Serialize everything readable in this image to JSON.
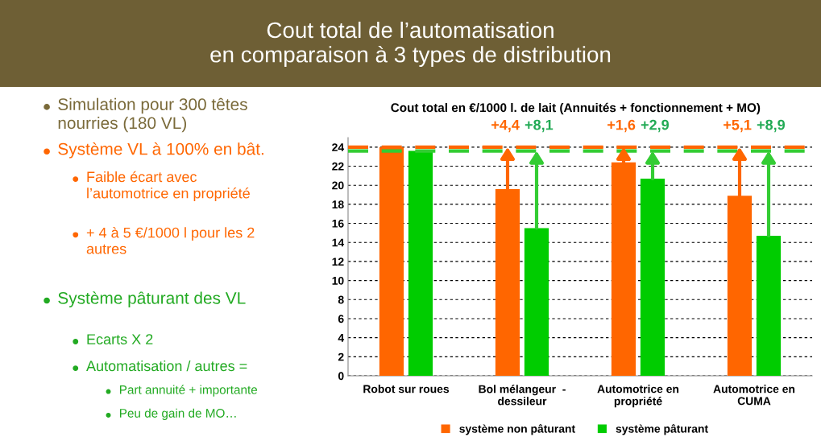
{
  "chart_data": {
    "type": "bar",
    "title": "Cout total de l’automatisation\nen comparaison à 3 types de distribution",
    "subtitle": "Cout total en €/1000 l. de lait (Annuités + fonctionnement + MO)",
    "categories": [
      "Robot sur roues",
      "Bol mélangeur  -\ndessileur",
      "Automotrice en\npropriété",
      "Automotrice en\nCUMA"
    ],
    "series": [
      {
        "name": "système non pâturant",
        "color": "#ff6600",
        "values": [
          24.0,
          19.6,
          22.4,
          18.9
        ]
      },
      {
        "name": "système pâturant",
        "color": "#00cc00",
        "values": [
          23.6,
          15.5,
          20.7,
          14.7
        ]
      }
    ],
    "ylim": [
      0,
      25
    ],
    "yticks": [
      0,
      2,
      4,
      6,
      8,
      10,
      12,
      14,
      16,
      18,
      20,
      22,
      24
    ],
    "grid": "y",
    "legend": "bottom",
    "ref_lines": [
      {
        "axis": "y",
        "value": 24.0,
        "color": "#ff6600",
        "line_style": "dashed"
      },
      {
        "axis": "y",
        "value": 23.6,
        "color": "#33cc33",
        "line_style": "dashed"
      }
    ],
    "annotations": [
      {
        "text": "+4,4",
        "x": "Bol mélangeur  -\ndessileur",
        "y": 24.0
      },
      {
        "text": "+8,1",
        "x": "Bol mélangeur  -\ndessileur",
        "y": 23.6
      },
      {
        "text": "+1,6",
        "x": "Automotrice en\npropriété",
        "y": 24.0
      },
      {
        "text": "+2,9",
        "x": "Automotrice en\npropriété",
        "y": 23.6
      },
      {
        "text": "+5,1",
        "x": "Automotrice en\nCUMA",
        "y": 24.0
      },
      {
        "text": "+8,9",
        "x": "Automotrice en\nCUMA",
        "y": 23.6
      },
      "Simulation pour 300 têtes\nnourries (180 VL)",
      "Système VL à 100% en bât.",
      "Faible écart avec\nl’automotrice en propriété",
      "+ 4 à 5 €/1000 l pour les 2\nautres",
      "Système pâturant des VL",
      "Ecarts X 2",
      "Automatisation / autres =",
      "Part annuité + importante",
      "Peu de gain de MO…"
    ]
  }
}
